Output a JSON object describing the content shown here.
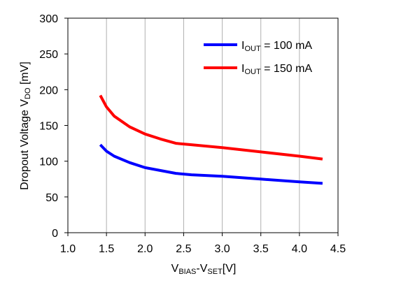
{
  "chart_data": {
    "type": "line",
    "xlim": [
      1.0,
      4.5
    ],
    "ylim": [
      0,
      300
    ],
    "x_ticks": [
      1.0,
      1.5,
      2.0,
      2.5,
      3.0,
      3.5,
      4.0,
      4.5
    ],
    "y_ticks": [
      0,
      50,
      100,
      150,
      200,
      250,
      300
    ],
    "x_tick_labels": [
      "1.0",
      "1.5",
      "2.0",
      "2.5",
      "3.0",
      "3.5",
      "4.0",
      "4.5"
    ],
    "y_tick_labels": [
      "0",
      "50",
      "100",
      "150",
      "200",
      "250",
      "300"
    ],
    "grid": "vertical",
    "legend_position": "top-right",
    "xlabel": {
      "base1": "V",
      "sub1": "BIAS",
      "dash": "-V",
      "sub2": "SET",
      "rest": "[V]"
    },
    "ylabel": {
      "base": "Dropout Voltage V",
      "sub": "DO",
      "rest": " [mV]"
    },
    "series": [
      {
        "name_base": "I",
        "name_sub": "OUT",
        "name_rest": " = 100 mA",
        "color": "#0000ff",
        "x": [
          1.42,
          1.5,
          1.6,
          1.8,
          2.0,
          2.2,
          2.4,
          2.6,
          3.0,
          3.5,
          4.0,
          4.3
        ],
        "y": [
          123,
          114,
          107,
          98,
          91,
          87,
          83,
          81,
          79,
          75,
          71,
          69
        ]
      },
      {
        "name_base": "I",
        "name_sub": "OUT",
        "name_rest": " = 150 mA",
        "color": "#ff0000",
        "x": [
          1.42,
          1.5,
          1.6,
          1.8,
          2.0,
          2.2,
          2.4,
          2.6,
          3.0,
          3.5,
          4.0,
          4.3
        ],
        "y": [
          192,
          176,
          163,
          148,
          138,
          131,
          125,
          123,
          119,
          113,
          107,
          103
        ]
      }
    ]
  }
}
